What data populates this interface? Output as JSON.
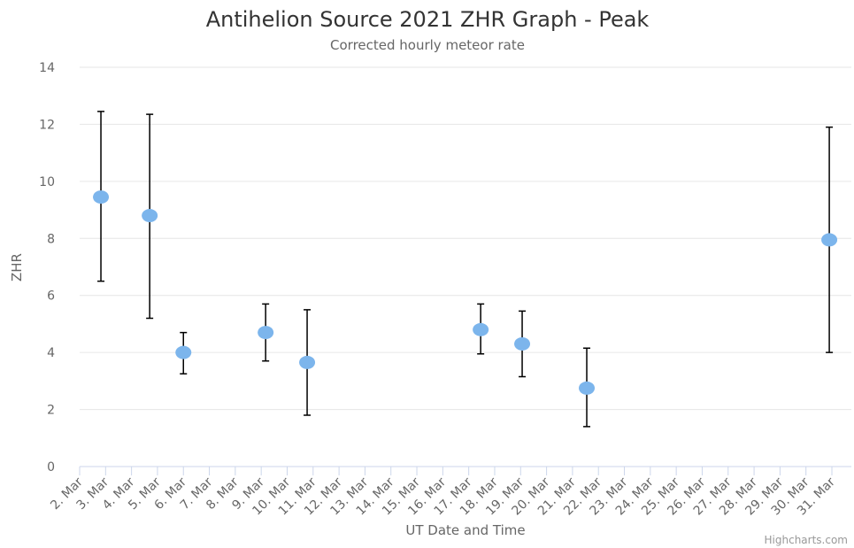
{
  "chart_data": {
    "type": "scatter",
    "title": "Antihelion Source 2021 ZHR Graph - Peak",
    "subtitle": "Corrected hourly meteor rate",
    "xlabel": "UT Date and Time",
    "ylabel": "ZHR",
    "credits": "Highcharts.com",
    "x": [
      2.82,
      4.7,
      6.0,
      9.17,
      10.77,
      17.46,
      19.06,
      21.55,
      30.9
    ],
    "values": [
      9.45,
      8.8,
      4.0,
      4.7,
      3.65,
      4.8,
      4.3,
      2.75,
      7.95
    ],
    "low": [
      6.5,
      5.2,
      3.25,
      3.7,
      1.8,
      3.95,
      3.15,
      1.4,
      4.0
    ],
    "high": [
      12.45,
      12.35,
      4.7,
      5.7,
      5.5,
      5.7,
      5.45,
      4.15,
      11.9
    ],
    "color": "#7cb5ec",
    "error_color": "#000000",
    "xlim": [
      2,
      31.75
    ],
    "ylim": [
      0,
      14
    ],
    "yticks": [
      0,
      2,
      4,
      6,
      8,
      10,
      12,
      14
    ],
    "xticks": [
      {
        "value": 2,
        "label": "2. Mar"
      },
      {
        "value": 3,
        "label": "3. Mar"
      },
      {
        "value": 4,
        "label": "4. Mar"
      },
      {
        "value": 5,
        "label": "5. Mar"
      },
      {
        "value": 6,
        "label": "6. Mar"
      },
      {
        "value": 7,
        "label": "7. Mar"
      },
      {
        "value": 8,
        "label": "8. Mar"
      },
      {
        "value": 9,
        "label": "9. Mar"
      },
      {
        "value": 10,
        "label": "10. Mar"
      },
      {
        "value": 11,
        "label": "11. Mar"
      },
      {
        "value": 12,
        "label": "12. Mar"
      },
      {
        "value": 13,
        "label": "13. Mar"
      },
      {
        "value": 14,
        "label": "14. Mar"
      },
      {
        "value": 15,
        "label": "15. Mar"
      },
      {
        "value": 16,
        "label": "16. Mar"
      },
      {
        "value": 17,
        "label": "17. Mar"
      },
      {
        "value": 18,
        "label": "18. Mar"
      },
      {
        "value": 19,
        "label": "19. Mar"
      },
      {
        "value": 20,
        "label": "20. Mar"
      },
      {
        "value": 21,
        "label": "21. Mar"
      },
      {
        "value": 22,
        "label": "22. Mar"
      },
      {
        "value": 23,
        "label": "23. Mar"
      },
      {
        "value": 24,
        "label": "24. Mar"
      },
      {
        "value": 25,
        "label": "25. Mar"
      },
      {
        "value": 26,
        "label": "26. Mar"
      },
      {
        "value": 27,
        "label": "27. Mar"
      },
      {
        "value": 28,
        "label": "28. Mar"
      },
      {
        "value": 29,
        "label": "29. Mar"
      },
      {
        "value": 30,
        "label": "30. Mar"
      },
      {
        "value": 31,
        "label": "31. Mar"
      }
    ],
    "grid": true
  }
}
